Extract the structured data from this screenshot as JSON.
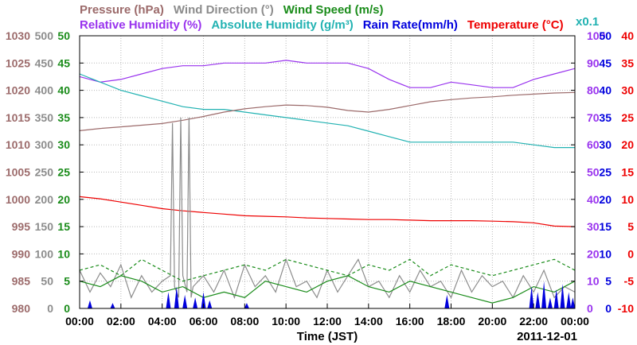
{
  "chart_data": {
    "type": "line",
    "legend_row1": [
      {
        "text": "Pressure (hPa)",
        "color": "#9c6b6b"
      },
      {
        "text": "Wind Direction (°)",
        "color": "#8c8c8c"
      },
      {
        "text": "Wind Speed (m/s)",
        "color": "#1a8c1a"
      }
    ],
    "legend_row2": [
      {
        "text": "Relative Humidity (%)",
        "color": "#9933ee"
      },
      {
        "text": "Absolute Humidity (g/m³)",
        "color": "#22b2b2"
      },
      {
        "text": "Rain Rate(mm/h)",
        "color": "#0000dd"
      },
      {
        "text": "Temperature (°C)",
        "color": "#ee0000"
      }
    ],
    "scale_note": {
      "text": "x0.1",
      "color": "#22b2b2"
    },
    "xlabel": "Time (JST)",
    "date": "2011-12-01",
    "x_ticks": [
      "00:00",
      "02:00",
      "04:00",
      "06:00",
      "08:00",
      "10:00",
      "12:00",
      "14:00",
      "16:00",
      "18:00",
      "20:00",
      "22:00",
      "00:00"
    ],
    "x_range_hours": [
      0,
      24
    ],
    "grid": true,
    "axes": [
      {
        "name": "Pressure",
        "color": "#9c6b6b",
        "side": "left",
        "range": [
          980,
          1030
        ],
        "ticks": [
          "980",
          "985",
          "990",
          "995",
          "1000",
          "1005",
          "1010",
          "1015",
          "1020",
          "1025",
          "1030"
        ]
      },
      {
        "name": "Wind Direction",
        "color": "#8c8c8c",
        "side": "left",
        "range": [
          0,
          500
        ],
        "ticks": [
          "0",
          "50",
          "100",
          "150",
          "200",
          "250",
          "300",
          "350",
          "400",
          "450",
          "500"
        ]
      },
      {
        "name": "Wind Speed",
        "color": "#1a8c1a",
        "side": "left",
        "range": [
          0,
          50
        ],
        "ticks": [
          "0",
          "5",
          "10",
          "15",
          "20",
          "25",
          "30",
          "35",
          "40",
          "45",
          "50"
        ]
      },
      {
        "name": "Humidity",
        "color": "#9933ee",
        "side": "right",
        "range": [
          0,
          100
        ],
        "ticks": [
          "0",
          "10",
          "20",
          "30",
          "40",
          "50",
          "60",
          "70",
          "80",
          "90",
          "100"
        ]
      },
      {
        "name": "Rain Rate",
        "color": "#0000dd",
        "side": "right",
        "range": [
          0,
          50
        ],
        "ticks": [
          "0",
          "5",
          "10",
          "15",
          "20",
          "25",
          "30",
          "35",
          "40",
          "45",
          "50"
        ]
      },
      {
        "name": "Temperature",
        "color": "#ee0000",
        "side": "right",
        "range": [
          -10,
          40
        ],
        "ticks": [
          "-10",
          "-5",
          "0",
          "5",
          "10",
          "15",
          "20",
          "25",
          "30",
          "35",
          "40"
        ]
      }
    ],
    "series": [
      {
        "name": "Relative Humidity",
        "axis": "Humidity",
        "color": "#9933ee",
        "x": [
          0,
          1,
          2,
          3,
          4,
          5,
          6,
          7,
          8,
          9,
          10,
          11,
          12,
          13,
          14,
          15,
          16,
          17,
          18,
          19,
          20,
          21,
          22,
          23,
          24
        ],
        "y": [
          85,
          83,
          84,
          86,
          88,
          89,
          89,
          90,
          90,
          90,
          91,
          90,
          90,
          90,
          88,
          84,
          81,
          81,
          83,
          82,
          81,
          81,
          84,
          86,
          88
        ]
      },
      {
        "name": "Absolute Humidity",
        "axis": "Humidity",
        "color": "#22b2b2",
        "x": [
          0,
          1,
          2,
          3,
          4,
          5,
          6,
          7,
          8,
          9,
          10,
          11,
          12,
          13,
          14,
          15,
          16,
          17,
          18,
          19,
          20,
          21,
          22,
          23,
          24
        ],
        "y": [
          86,
          83,
          80,
          78,
          76,
          74,
          73,
          73,
          72,
          71,
          70,
          69,
          68,
          67,
          65,
          63,
          61,
          61,
          61,
          61,
          61,
          61,
          60,
          59,
          59
        ]
      },
      {
        "name": "Pressure",
        "axis": "Pressure",
        "color": "#9c6b6b",
        "x": [
          0,
          1,
          2,
          3,
          4,
          5,
          6,
          7,
          8,
          9,
          10,
          11,
          12,
          13,
          14,
          15,
          16,
          17,
          18,
          19,
          20,
          21,
          22,
          23,
          24
        ],
        "y": [
          1012.6,
          1013.0,
          1013.3,
          1013.6,
          1013.9,
          1014.5,
          1015.2,
          1016.0,
          1016.6,
          1017.0,
          1017.3,
          1017.2,
          1016.9,
          1016.3,
          1016.0,
          1016.5,
          1017.2,
          1017.9,
          1018.3,
          1018.6,
          1018.8,
          1019.1,
          1019.3,
          1019.5,
          1019.6
        ]
      },
      {
        "name": "Temperature",
        "axis": "Temperature",
        "color": "#ee0000",
        "x": [
          0,
          1,
          2,
          3,
          4,
          5,
          6,
          7,
          8,
          9,
          10,
          11,
          12,
          13,
          14,
          15,
          16,
          17,
          18,
          19,
          20,
          21,
          22,
          23,
          24
        ],
        "y": [
          10.5,
          10.1,
          9.5,
          8.9,
          8.3,
          7.9,
          7.6,
          7.3,
          7.0,
          6.9,
          6.8,
          6.6,
          6.5,
          6.4,
          6.3,
          6.3,
          6.2,
          6.1,
          6.1,
          6.1,
          6.0,
          5.9,
          5.7,
          5.1,
          5.0
        ]
      },
      {
        "name": "Wind Direction",
        "axis": "Wind Direction",
        "color": "#8c8c8c",
        "x": [
          0,
          0.5,
          1,
          1.5,
          2,
          2.5,
          3,
          3.5,
          4,
          4.4,
          4.5,
          4.6,
          4.8,
          4.9,
          5.0,
          5.2,
          5.3,
          5.4,
          5.5,
          6,
          6.5,
          7,
          7.5,
          8,
          8.5,
          9,
          9.5,
          10,
          10.5,
          11,
          11.5,
          12,
          12.5,
          13,
          13.5,
          14,
          14.5,
          15,
          15.5,
          16,
          16.5,
          17,
          17.5,
          18,
          18.5,
          19,
          19.5,
          20,
          20.5,
          21,
          21.5,
          22,
          22.5,
          23,
          23.5,
          24
        ],
        "y": [
          70,
          30,
          65,
          40,
          80,
          20,
          60,
          30,
          50,
          60,
          340,
          40,
          20,
          350,
          60,
          30,
          350,
          20,
          40,
          60,
          30,
          70,
          20,
          80,
          40,
          60,
          30,
          90,
          40,
          50,
          20,
          70,
          30,
          60,
          90,
          40,
          50,
          20,
          60,
          30,
          70,
          40,
          50,
          20,
          70,
          30,
          60,
          40,
          50,
          20,
          60,
          30,
          70,
          20,
          40,
          30
        ]
      },
      {
        "name": "Wind Speed",
        "axis": "Wind Speed",
        "color": "#1a8c1a",
        "x": [
          0,
          1,
          2,
          3,
          4,
          5,
          6,
          7,
          8,
          9,
          10,
          11,
          12,
          13,
          14,
          15,
          16,
          17,
          18,
          19,
          20,
          21,
          22,
          23,
          24
        ],
        "y": [
          5,
          4,
          6,
          5,
          3,
          4,
          2,
          3,
          2,
          5,
          4,
          3,
          5,
          6,
          4,
          3,
          5,
          4,
          3,
          2,
          1,
          2,
          4,
          3,
          5
        ]
      },
      {
        "name": "Wind Speed (gust)",
        "axis": "Wind Speed",
        "color": "#1a8c1a",
        "dashed": true,
        "x": [
          0,
          1,
          2,
          3,
          4,
          5,
          6,
          7,
          8,
          9,
          10,
          11,
          12,
          13,
          14,
          15,
          16,
          17,
          18,
          19,
          20,
          21,
          22,
          23,
          24
        ],
        "y": [
          7,
          8,
          6,
          9,
          7,
          5,
          6,
          7,
          8,
          7,
          9,
          8,
          7,
          6,
          8,
          7,
          9,
          6,
          8,
          7,
          6,
          7,
          8,
          9,
          7
        ]
      },
      {
        "name": "Rain Rate",
        "axis": "Rain Rate",
        "color": "#0000dd",
        "type": "bars",
        "x": [
          0.5,
          1.6,
          4.3,
          4.7,
          5.1,
          5.6,
          6.0,
          6.3,
          8.1,
          17.8,
          21.9,
          22.2,
          22.5,
          22.8,
          23.1,
          23.4,
          23.7,
          23.9
        ],
        "y": [
          1.5,
          1,
          3,
          4,
          2.5,
          2,
          3,
          1.5,
          1,
          2.5,
          4,
          3,
          5,
          2,
          3.5,
          4.5,
          3,
          2
        ]
      }
    ]
  }
}
